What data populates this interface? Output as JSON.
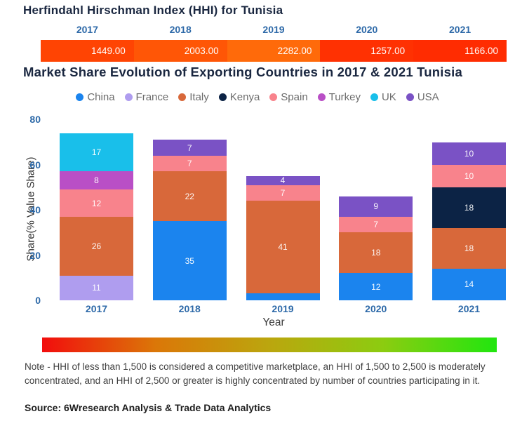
{
  "hhi": {
    "title": "Herfindahl Hirschman Index (HHI) for Tunisia",
    "years": [
      "2017",
      "2018",
      "2019",
      "2020",
      "2021"
    ],
    "values": [
      "1449.00",
      "2003.00",
      "2282.00",
      "1257.00",
      "1166.00"
    ],
    "segment_colors": [
      "#FF4403",
      "#FF5606",
      "#FF6A0A",
      "#FF3102",
      "#FF2C01"
    ]
  },
  "market": {
    "title": "Market Share Evolution of Exporting Countries in 2017 & 2021 Tunisia"
  },
  "chart_data": {
    "type": "bar",
    "stacked": true,
    "title": "Market Share Evolution of Exporting Countries in 2017 & 2021 Tunisia",
    "categories": [
      "2017",
      "2018",
      "2019",
      "2020",
      "2021"
    ],
    "series": [
      {
        "name": "China",
        "color": "#1B84EE",
        "values": [
          0,
          35,
          3,
          12,
          14
        ]
      },
      {
        "name": "France",
        "color": "#AF9DEF",
        "values": [
          11,
          0,
          0,
          0,
          0
        ]
      },
      {
        "name": "Italy",
        "color": "#D8683A",
        "values": [
          26,
          22,
          41,
          18,
          18
        ]
      },
      {
        "name": "Kenya",
        "color": "#0C2345",
        "values": [
          0,
          0,
          0,
          0,
          18
        ]
      },
      {
        "name": "Spain",
        "color": "#F8838C",
        "values": [
          12,
          7,
          7,
          7,
          10
        ]
      },
      {
        "name": "Turkey",
        "color": "#B94FC6",
        "values": [
          8,
          0,
          0,
          0,
          0
        ]
      },
      {
        "name": "UK",
        "color": "#19BFEA",
        "values": [
          17,
          0,
          0,
          0,
          0
        ]
      },
      {
        "name": "USA",
        "color": "#7A52C5",
        "values": [
          0,
          7,
          4,
          9,
          10
        ]
      }
    ],
    "xlabel": "Year",
    "ylabel": "Share(% Value Share)",
    "ylim": [
      0,
      80
    ],
    "yticks": [
      0,
      20,
      40,
      60,
      80
    ],
    "legend_position": "top",
    "grid": false,
    "label_min_value_to_show": 4
  },
  "gradient_scale": {
    "colors": [
      "#F20D0D",
      "#DB7708",
      "#BBA60E",
      "#8CCC10",
      "#21E60F"
    ]
  },
  "note": {
    "text": "Note - HHI of less than 1,500 is considered a competitive marketplace, an HHI of 1,500 to 2,500 is moderately concentrated, and an HHI of 2,500 or greater is highly concentrated by number of countries participating in it.",
    "source": "Source: 6Wresearch Analysis & Trade Data Analytics"
  }
}
